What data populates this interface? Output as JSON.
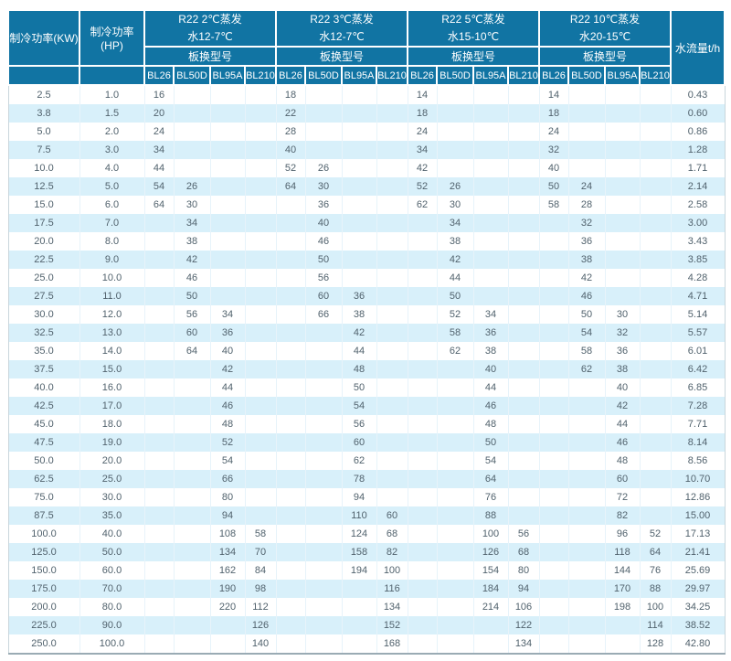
{
  "table": {
    "col1_header": "制冷功率(KW)",
    "col2_header": "制冷功率(HP)",
    "flow_header": "水流量t/h",
    "model_row_label": "板换型号",
    "model_columns": [
      "BL26",
      "BL50D",
      "BL95A",
      "BL210"
    ],
    "groups": [
      {
        "line1": "R22 2℃蒸发",
        "line2": "水12-7℃"
      },
      {
        "line1": "R22 3℃蒸发",
        "line2": "水12-7℃"
      },
      {
        "line1": "R22 5℃蒸发",
        "line2": "水15-10℃"
      },
      {
        "line1": "R22 10℃蒸发",
        "line2": "水20-15℃"
      }
    ],
    "rows": [
      {
        "kw": "2.5",
        "hp": "1.0",
        "g1": [
          "16",
          "",
          "",
          ""
        ],
        "g2": [
          "18",
          "",
          "",
          ""
        ],
        "g3": [
          "14",
          "",
          "",
          ""
        ],
        "g4": [
          "14",
          "",
          "",
          ""
        ],
        "flow": "0.43"
      },
      {
        "kw": "3.8",
        "hp": "1.5",
        "g1": [
          "20",
          "",
          "",
          ""
        ],
        "g2": [
          "22",
          "",
          "",
          ""
        ],
        "g3": [
          "18",
          "",
          "",
          ""
        ],
        "g4": [
          "18",
          "",
          "",
          ""
        ],
        "flow": "0.60"
      },
      {
        "kw": "5.0",
        "hp": "2.0",
        "g1": [
          "24",
          "",
          "",
          ""
        ],
        "g2": [
          "28",
          "",
          "",
          ""
        ],
        "g3": [
          "24",
          "",
          "",
          ""
        ],
        "g4": [
          "24",
          "",
          "",
          ""
        ],
        "flow": "0.86"
      },
      {
        "kw": "7.5",
        "hp": "3.0",
        "g1": [
          "34",
          "",
          "",
          ""
        ],
        "g2": [
          "40",
          "",
          "",
          ""
        ],
        "g3": [
          "34",
          "",
          "",
          ""
        ],
        "g4": [
          "32",
          "",
          "",
          ""
        ],
        "flow": "1.28"
      },
      {
        "kw": "10.0",
        "hp": "4.0",
        "g1": [
          "44",
          "",
          "",
          ""
        ],
        "g2": [
          "52",
          "26",
          "",
          ""
        ],
        "g3": [
          "42",
          "",
          "",
          ""
        ],
        "g4": [
          "40",
          "",
          "",
          ""
        ],
        "flow": "1.71"
      },
      {
        "kw": "12.5",
        "hp": "5.0",
        "g1": [
          "54",
          "26",
          "",
          ""
        ],
        "g2": [
          "64",
          "30",
          "",
          ""
        ],
        "g3": [
          "52",
          "26",
          "",
          ""
        ],
        "g4": [
          "50",
          "24",
          "",
          ""
        ],
        "flow": "2.14"
      },
      {
        "kw": "15.0",
        "hp": "6.0",
        "g1": [
          "64",
          "30",
          "",
          ""
        ],
        "g2": [
          "",
          "36",
          "",
          ""
        ],
        "g3": [
          "62",
          "30",
          "",
          ""
        ],
        "g4": [
          "58",
          "28",
          "",
          ""
        ],
        "flow": "2.58"
      },
      {
        "kw": "17.5",
        "hp": "7.0",
        "g1": [
          "",
          "34",
          "",
          ""
        ],
        "g2": [
          "",
          "40",
          "",
          ""
        ],
        "g3": [
          "",
          "34",
          "",
          ""
        ],
        "g4": [
          "",
          "32",
          "",
          ""
        ],
        "flow": "3.00"
      },
      {
        "kw": "20.0",
        "hp": "8.0",
        "g1": [
          "",
          "38",
          "",
          ""
        ],
        "g2": [
          "",
          "46",
          "",
          ""
        ],
        "g3": [
          "",
          "38",
          "",
          ""
        ],
        "g4": [
          "",
          "36",
          "",
          ""
        ],
        "flow": "3.43"
      },
      {
        "kw": "22.5",
        "hp": "9.0",
        "g1": [
          "",
          "42",
          "",
          ""
        ],
        "g2": [
          "",
          "50",
          "",
          ""
        ],
        "g3": [
          "",
          "42",
          "",
          ""
        ],
        "g4": [
          "",
          "38",
          "",
          ""
        ],
        "flow": "3.85"
      },
      {
        "kw": "25.0",
        "hp": "10.0",
        "g1": [
          "",
          "46",
          "",
          ""
        ],
        "g2": [
          "",
          "56",
          "",
          ""
        ],
        "g3": [
          "",
          "44",
          "",
          ""
        ],
        "g4": [
          "",
          "42",
          "",
          ""
        ],
        "flow": "4.28"
      },
      {
        "kw": "27.5",
        "hp": "11.0",
        "g1": [
          "",
          "50",
          "",
          ""
        ],
        "g2": [
          "",
          "60",
          "36",
          ""
        ],
        "g3": [
          "",
          "50",
          "",
          ""
        ],
        "g4": [
          "",
          "46",
          "",
          ""
        ],
        "flow": "4.71"
      },
      {
        "kw": "30.0",
        "hp": "12.0",
        "g1": [
          "",
          "56",
          "34",
          ""
        ],
        "g2": [
          "",
          "66",
          "38",
          ""
        ],
        "g3": [
          "",
          "52",
          "34",
          ""
        ],
        "g4": [
          "",
          "50",
          "30",
          ""
        ],
        "flow": "5.14"
      },
      {
        "kw": "32.5",
        "hp": "13.0",
        "g1": [
          "",
          "60",
          "36",
          ""
        ],
        "g2": [
          "",
          "",
          "42",
          ""
        ],
        "g3": [
          "",
          "58",
          "36",
          ""
        ],
        "g4": [
          "",
          "54",
          "32",
          ""
        ],
        "flow": "5.57"
      },
      {
        "kw": "35.0",
        "hp": "14.0",
        "g1": [
          "",
          "64",
          "40",
          ""
        ],
        "g2": [
          "",
          "",
          "44",
          ""
        ],
        "g3": [
          "",
          "62",
          "38",
          ""
        ],
        "g4": [
          "",
          "58",
          "36",
          ""
        ],
        "flow": "6.01"
      },
      {
        "kw": "37.5",
        "hp": "15.0",
        "g1": [
          "",
          "",
          "42",
          ""
        ],
        "g2": [
          "",
          "",
          "48",
          ""
        ],
        "g3": [
          "",
          "",
          "40",
          ""
        ],
        "g4": [
          "",
          "62",
          "38",
          ""
        ],
        "flow": "6.42"
      },
      {
        "kw": "40.0",
        "hp": "16.0",
        "g1": [
          "",
          "",
          "44",
          ""
        ],
        "g2": [
          "",
          "",
          "50",
          ""
        ],
        "g3": [
          "",
          "",
          "44",
          ""
        ],
        "g4": [
          "",
          "",
          "40",
          ""
        ],
        "flow": "6.85"
      },
      {
        "kw": "42.5",
        "hp": "17.0",
        "g1": [
          "",
          "",
          "46",
          ""
        ],
        "g2": [
          "",
          "",
          "54",
          ""
        ],
        "g3": [
          "",
          "",
          "46",
          ""
        ],
        "g4": [
          "",
          "",
          "42",
          ""
        ],
        "flow": "7.28"
      },
      {
        "kw": "45.0",
        "hp": "18.0",
        "g1": [
          "",
          "",
          "48",
          ""
        ],
        "g2": [
          "",
          "",
          "56",
          ""
        ],
        "g3": [
          "",
          "",
          "48",
          ""
        ],
        "g4": [
          "",
          "",
          "44",
          ""
        ],
        "flow": "7.71"
      },
      {
        "kw": "47.5",
        "hp": "19.0",
        "g1": [
          "",
          "",
          "52",
          ""
        ],
        "g2": [
          "",
          "",
          "60",
          ""
        ],
        "g3": [
          "",
          "",
          "50",
          ""
        ],
        "g4": [
          "",
          "",
          "46",
          ""
        ],
        "flow": "8.14"
      },
      {
        "kw": "50.0",
        "hp": "20.0",
        "g1": [
          "",
          "",
          "54",
          ""
        ],
        "g2": [
          "",
          "",
          "62",
          ""
        ],
        "g3": [
          "",
          "",
          "54",
          ""
        ],
        "g4": [
          "",
          "",
          "48",
          ""
        ],
        "flow": "8.56"
      },
      {
        "kw": "62.5",
        "hp": "25.0",
        "g1": [
          "",
          "",
          "66",
          ""
        ],
        "g2": [
          "",
          "",
          "78",
          ""
        ],
        "g3": [
          "",
          "",
          "64",
          ""
        ],
        "g4": [
          "",
          "",
          "60",
          ""
        ],
        "flow": "10.70"
      },
      {
        "kw": "75.0",
        "hp": "30.0",
        "g1": [
          "",
          "",
          "80",
          ""
        ],
        "g2": [
          "",
          "",
          "94",
          ""
        ],
        "g3": [
          "",
          "",
          "76",
          ""
        ],
        "g4": [
          "",
          "",
          "72",
          ""
        ],
        "flow": "12.86"
      },
      {
        "kw": "87.5",
        "hp": "35.0",
        "g1": [
          "",
          "",
          "94",
          ""
        ],
        "g2": [
          "",
          "",
          "110",
          "60"
        ],
        "g3": [
          "",
          "",
          "88",
          ""
        ],
        "g4": [
          "",
          "",
          "82",
          ""
        ],
        "flow": "15.00"
      },
      {
        "kw": "100.0",
        "hp": "40.0",
        "g1": [
          "",
          "",
          "108",
          "58"
        ],
        "g2": [
          "",
          "",
          "124",
          "68"
        ],
        "g3": [
          "",
          "",
          "100",
          "56"
        ],
        "g4": [
          "",
          "",
          "96",
          "52"
        ],
        "flow": "17.13"
      },
      {
        "kw": "125.0",
        "hp": "50.0",
        "g1": [
          "",
          "",
          "134",
          "70"
        ],
        "g2": [
          "",
          "",
          "158",
          "82"
        ],
        "g3": [
          "",
          "",
          "126",
          "68"
        ],
        "g4": [
          "",
          "",
          "118",
          "64"
        ],
        "flow": "21.41"
      },
      {
        "kw": "150.0",
        "hp": "60.0",
        "g1": [
          "",
          "",
          "162",
          "84"
        ],
        "g2": [
          "",
          "",
          "194",
          "100"
        ],
        "g3": [
          "",
          "",
          "154",
          "80"
        ],
        "g4": [
          "",
          "",
          "144",
          "76"
        ],
        "flow": "25.69"
      },
      {
        "kw": "175.0",
        "hp": "70.0",
        "g1": [
          "",
          "",
          "190",
          "98"
        ],
        "g2": [
          "",
          "",
          "",
          "116"
        ],
        "g3": [
          "",
          "",
          "184",
          "94"
        ],
        "g4": [
          "",
          "",
          "170",
          "88"
        ],
        "flow": "29.97"
      },
      {
        "kw": "200.0",
        "hp": "80.0",
        "g1": [
          "",
          "",
          "220",
          "112"
        ],
        "g2": [
          "",
          "",
          "",
          "134"
        ],
        "g3": [
          "",
          "",
          "214",
          "106"
        ],
        "g4": [
          "",
          "",
          "198",
          "100"
        ],
        "flow": "34.25"
      },
      {
        "kw": "225.0",
        "hp": "90.0",
        "g1": [
          "",
          "",
          "",
          "126"
        ],
        "g2": [
          "",
          "",
          "",
          "152"
        ],
        "g3": [
          "",
          "",
          "",
          "122"
        ],
        "g4": [
          "",
          "",
          "",
          "114"
        ],
        "flow": "38.52"
      },
      {
        "kw": "250.0",
        "hp": "100.0",
        "g1": [
          "",
          "",
          "",
          "140"
        ],
        "g2": [
          "",
          "",
          "",
          "168"
        ],
        "g3": [
          "",
          "",
          "",
          "134"
        ],
        "g4": [
          "",
          "",
          "",
          "128"
        ],
        "flow": "42.80"
      }
    ]
  },
  "colors": {
    "header_bg": "#1174a3",
    "row_alt": "#d8f0fa",
    "text": "#51626d",
    "grid_line": "#e7f3fa",
    "outer_border": "#9aabb4",
    "side_border": "#c9d6dc"
  }
}
